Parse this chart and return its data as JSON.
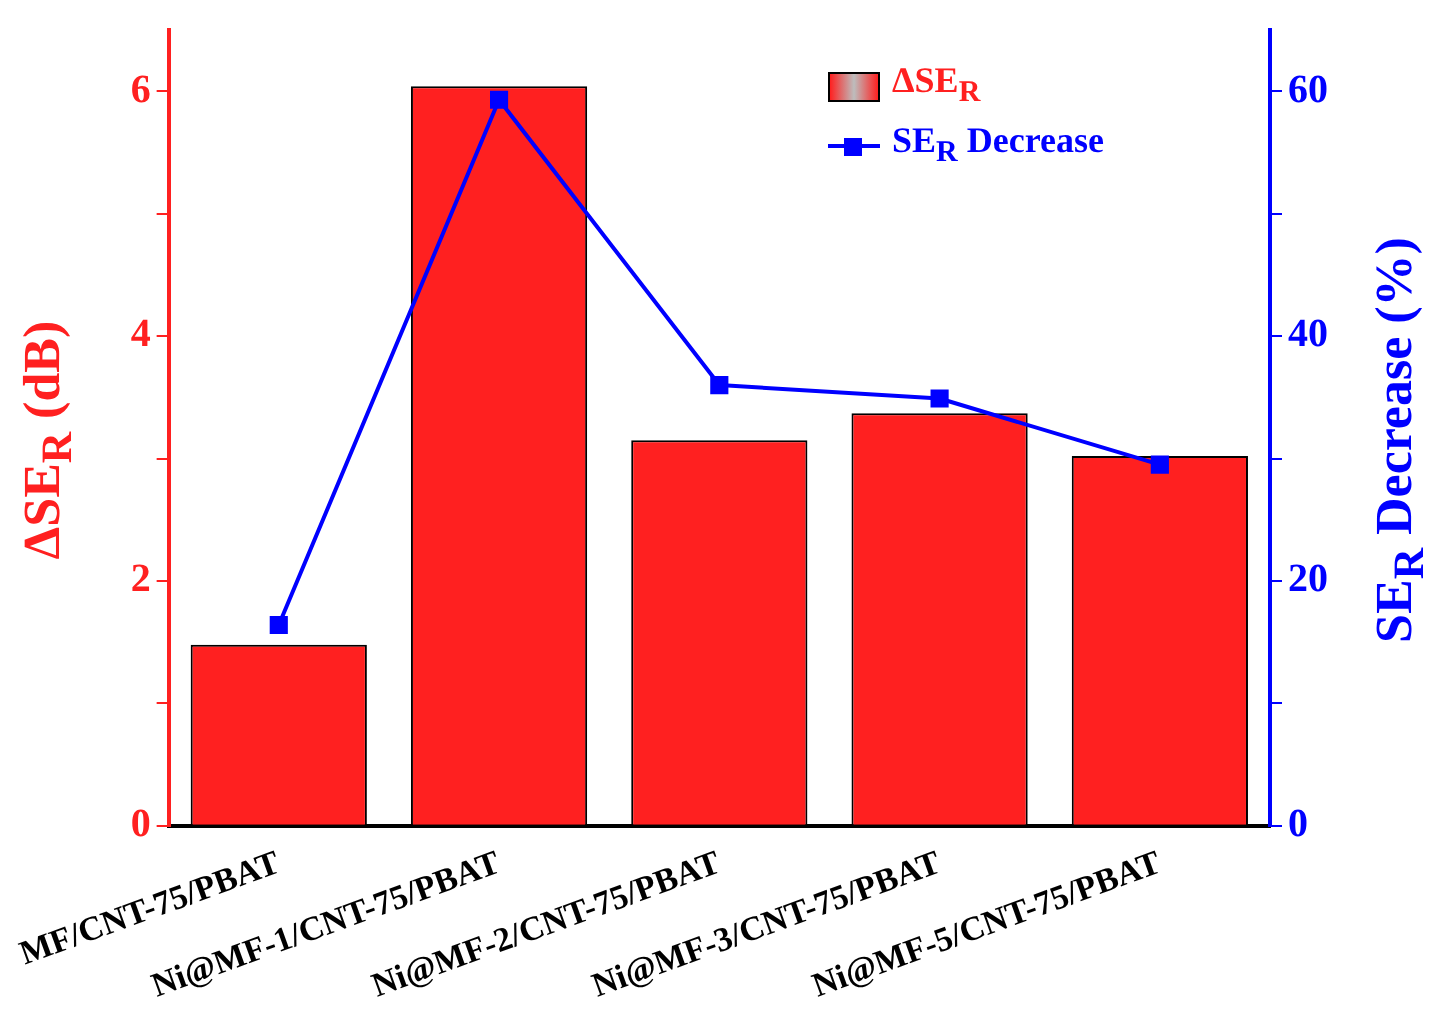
{
  "chart_data": {
    "type": "bar",
    "categories": [
      "MF/CNT-75/PBAT",
      "Ni@MF-1/CNT-75/PBAT",
      "Ni@MF-2/CNT-75/PBAT",
      "Ni@MF-3/CNT-75/PBAT",
      "Ni@MF-5/CNT-75/PBAT"
    ],
    "ylabel": "ΔSE$_{R}$ (dB)",
    "y2label": "SE$_{R}$ Decrease (%)",
    "series": [
      {
        "name": "ΔSE$_{R}$",
        "color": "#ff2020",
        "values": [
          1.48,
          6.04,
          3.15,
          3.37,
          3.02
        ]
      },
      {
        "name": "SE$_{R}$ Decrease",
        "type": "line",
        "axis": "y2",
        "color": "#0000ff",
        "marker": "square",
        "values": [
          16.4,
          59.3,
          36.0,
          34.9,
          29.5
        ]
      }
    ],
    "ylim": [
      0,
      6.5
    ],
    "yticks": [
      0,
      {
        "value": 1,
        "label": null
      },
      2,
      {
        "value": 3,
        "label": null
      },
      4,
      {
        "value": 5,
        "label": null
      },
      6
    ],
    "y2lim": [
      0,
      65
    ],
    "y2ticks": [
      0,
      {
        "value": 10,
        "label": null
      },
      20,
      {
        "value": 30,
        "label": null
      },
      40,
      {
        "value": 50,
        "label": null
      },
      60
    ],
    "grid": false,
    "legend": "top right"
  }
}
